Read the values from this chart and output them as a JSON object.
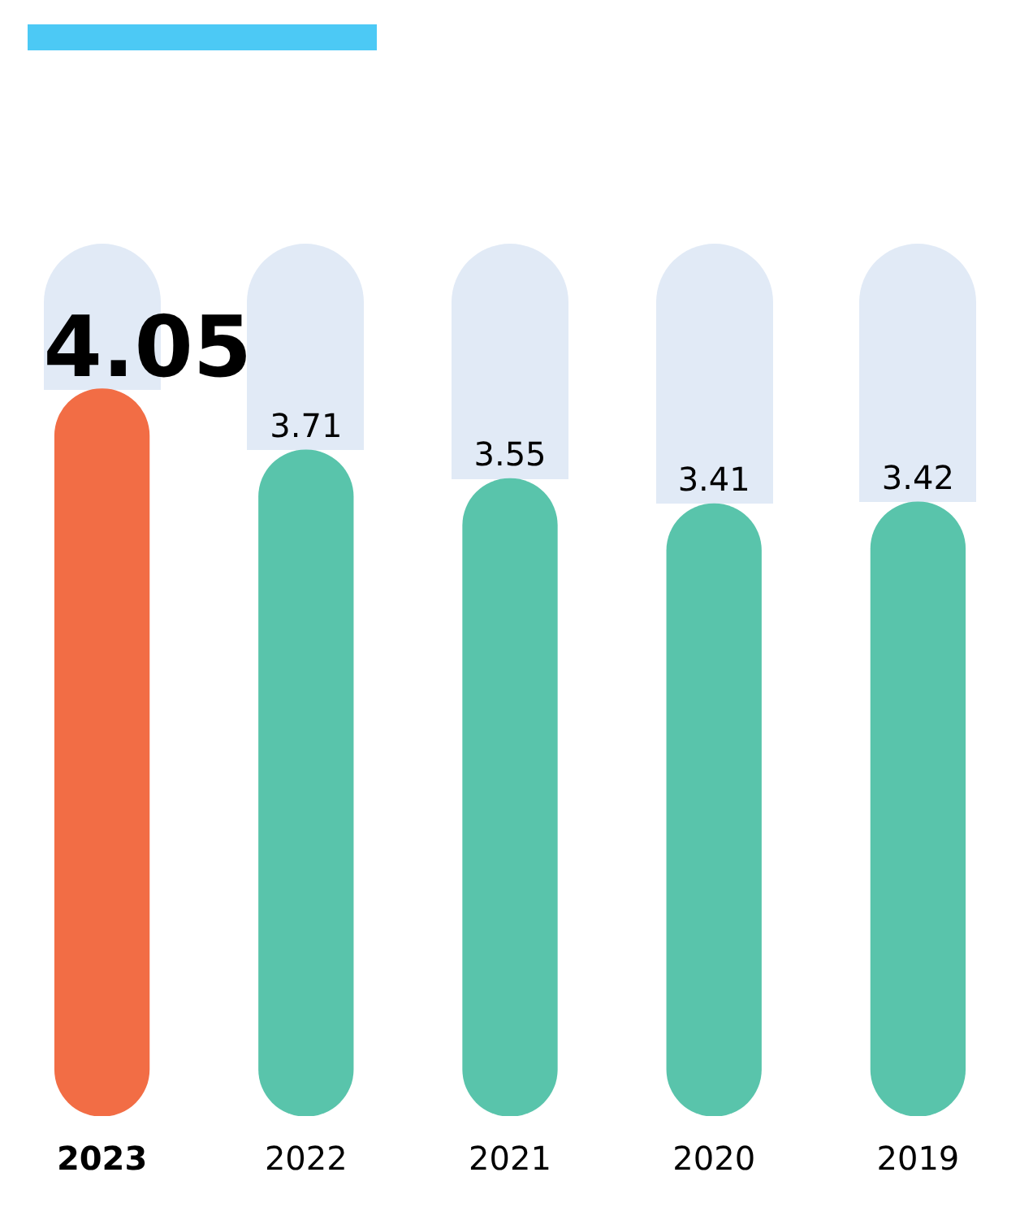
{
  "chart_data": {
    "type": "bar",
    "categories": [
      "2023",
      "2022",
      "2021",
      "2020",
      "2019"
    ],
    "values": [
      4.05,
      3.71,
      3.55,
      3.41,
      3.42
    ],
    "colors": [
      "#f26d45",
      "#59c4ab",
      "#59c4ab",
      "#59c4ab",
      "#59c4ab"
    ],
    "tick_labels": "x",
    "data_labels": true
  }
}
